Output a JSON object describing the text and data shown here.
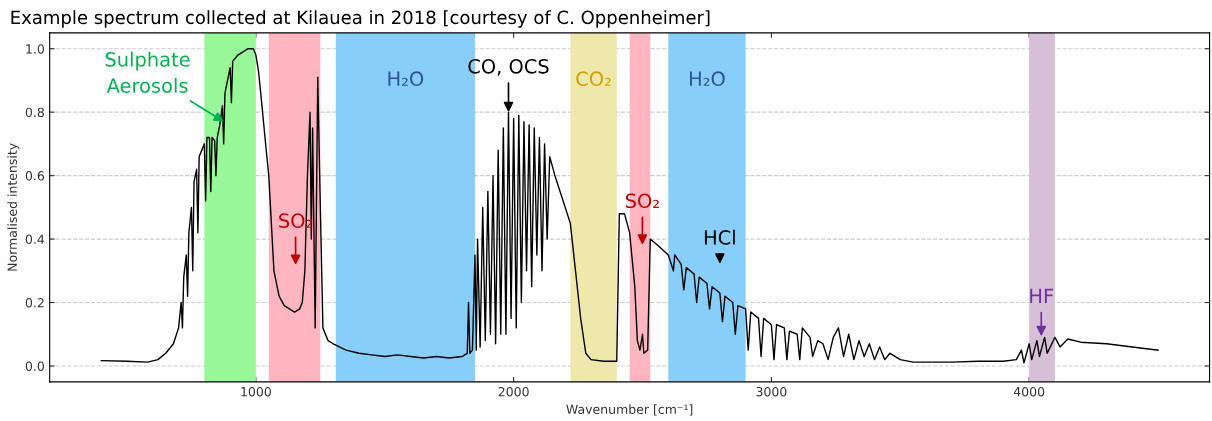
{
  "chart_data": {
    "type": "line",
    "title": "Example spectrum collected at Kilauea in 2018 [courtesy of C. Oppenheimer]",
    "xlabel": "Wavenumber [cm⁻¹]",
    "ylabel": "Normalised intensity",
    "xlim": [
      200,
      4700
    ],
    "ylim": [
      -0.05,
      1.05
    ],
    "xticks": [
      1000,
      2000,
      3000,
      4000
    ],
    "yticks": [
      {
        "value": 0,
        "label": "0.0"
      },
      {
        "value": 0.2,
        "label": "0.2"
      },
      {
        "value": 0.4,
        "label": "0.4"
      },
      {
        "value": 0.6,
        "label": "0.6"
      },
      {
        "value": 0.8,
        "label": "0.8"
      },
      {
        "value": 1,
        "label": "1.0"
      }
    ],
    "grid": "y",
    "legend": false,
    "marker": "none",
    "line_style": "solid",
    "series": [
      {
        "color": "#000000",
        "x": [
          400,
          500,
          580,
          620,
          650,
          680,
          700,
          710,
          715,
          720,
          730,
          735,
          740,
          750,
          755,
          760,
          770,
          775,
          780,
          790,
          800,
          805,
          810,
          820,
          825,
          830,
          840,
          845,
          850,
          860,
          870,
          875,
          880,
          890,
          900,
          905,
          910,
          930,
          950,
          970,
          990,
          1000,
          1010,
          1020,
          1040,
          1050,
          1060,
          1070,
          1090,
          1110,
          1130,
          1150,
          1170,
          1180,
          1190,
          1200,
          1210,
          1215,
          1220,
          1230,
          1240,
          1250,
          1260,
          1280,
          1300,
          1350,
          1400,
          1450,
          1500,
          1550,
          1600,
          1650,
          1700,
          1750,
          1800,
          1820,
          1825,
          1830,
          1840,
          1850,
          1855,
          1860,
          1870,
          1880,
          1890,
          1900,
          1910,
          1920,
          1930,
          1940,
          1950,
          1960,
          1970,
          1980,
          1990,
          2000,
          2010,
          2020,
          2030,
          2040,
          2050,
          2060,
          2070,
          2080,
          2090,
          2100,
          2110,
          2120,
          2130,
          2140,
          2160,
          2180,
          2200,
          2220,
          2240,
          2260,
          2280,
          2300,
          2350,
          2400,
          2410,
          2430,
          2450,
          2470,
          2480,
          2490,
          2500,
          2505,
          2520,
          2530,
          2560,
          2600,
          2620,
          2625,
          2650,
          2660,
          2670,
          2700,
          2710,
          2720,
          2750,
          2760,
          2770,
          2800,
          2810,
          2820,
          2850,
          2860,
          2870,
          2900,
          2910,
          2920,
          2950,
          2960,
          2970,
          3000,
          3010,
          3020,
          3050,
          3060,
          3070,
          3100,
          3110,
          3120,
          3150,
          3160,
          3180,
          3200,
          3220,
          3240,
          3260,
          3280,
          3300,
          3320,
          3340,
          3360,
          3380,
          3400,
          3420,
          3440,
          3460,
          3500,
          3550,
          3700,
          3800,
          3900,
          3950,
          3970,
          3980,
          4000,
          4010,
          4030,
          4040,
          4060,
          4070,
          4100,
          4120,
          4150,
          4200,
          4300,
          4400,
          4500
        ],
        "values": [
          0.017,
          0.015,
          0.012,
          0.02,
          0.04,
          0.07,
          0.12,
          0.2,
          0.12,
          0.28,
          0.35,
          0.22,
          0.42,
          0.5,
          0.3,
          0.58,
          0.62,
          0.42,
          0.66,
          0.68,
          0.7,
          0.52,
          0.72,
          0.72,
          0.55,
          0.72,
          0.71,
          0.6,
          0.72,
          0.76,
          0.82,
          0.7,
          0.86,
          0.9,
          0.94,
          0.83,
          0.96,
          0.98,
          0.99,
          1.0,
          1.0,
          0.98,
          0.93,
          0.85,
          0.68,
          0.6,
          0.45,
          0.3,
          0.22,
          0.19,
          0.18,
          0.17,
          0.18,
          0.2,
          0.3,
          0.6,
          0.8,
          0.4,
          0.75,
          0.12,
          0.91,
          0.5,
          0.12,
          0.08,
          0.07,
          0.05,
          0.04,
          0.035,
          0.03,
          0.035,
          0.03,
          0.025,
          0.03,
          0.025,
          0.03,
          0.04,
          0.2,
          0.04,
          0.05,
          0.35,
          0.05,
          0.4,
          0.06,
          0.5,
          0.08,
          0.55,
          0.1,
          0.6,
          0.07,
          0.68,
          0.1,
          0.75,
          0.1,
          0.8,
          0.15,
          0.78,
          0.12,
          0.79,
          0.2,
          0.77,
          0.3,
          0.76,
          0.25,
          0.75,
          0.35,
          0.72,
          0.3,
          0.7,
          0.4,
          0.66,
          0.6,
          0.55,
          0.5,
          0.45,
          0.3,
          0.15,
          0.04,
          0.02,
          0.015,
          0.015,
          0.48,
          0.48,
          0.42,
          0.25,
          0.08,
          0.05,
          0.1,
          0.04,
          0.05,
          0.4,
          0.38,
          0.35,
          0.3,
          0.35,
          0.32,
          0.24,
          0.31,
          0.29,
          0.2,
          0.28,
          0.26,
          0.18,
          0.25,
          0.23,
          0.14,
          0.22,
          0.2,
          0.1,
          0.19,
          0.18,
          0.05,
          0.17,
          0.15,
          0.03,
          0.15,
          0.13,
          0.02,
          0.13,
          0.12,
          0.02,
          0.11,
          0.1,
          0.02,
          0.12,
          0.09,
          0.03,
          0.08,
          0.07,
          0.02,
          0.09,
          0.12,
          0.03,
          0.1,
          0.02,
          0.08,
          0.03,
          0.07,
          0.02,
          0.06,
          0.02,
          0.04,
          0.02,
          0.012,
          0.012,
          0.015,
          0.015,
          0.02,
          0.05,
          0.01,
          0.07,
          0.02,
          0.08,
          0.03,
          0.09,
          0.04,
          0.09,
          0.06,
          0.085,
          0.075,
          0.07,
          0.06,
          0.05
        ]
      }
    ],
    "bands": [
      {
        "axis": "x",
        "from": 800,
        "to": 1000,
        "color": "#98f898"
      },
      {
        "axis": "x",
        "from": 1050,
        "to": 1250,
        "color": "#ffb6c1"
      },
      {
        "axis": "x",
        "from": 1310,
        "to": 1850,
        "color": "#87cefa",
        "label": "H₂O"
      },
      {
        "axis": "x",
        "from": 2220,
        "to": 2400,
        "color": "#eee8aa",
        "label": "CO₂"
      },
      {
        "axis": "x",
        "from": 2450,
        "to": 2530,
        "color": "#ffb6c1"
      },
      {
        "axis": "x",
        "from": 2600,
        "to": 2900,
        "color": "#87cefa",
        "label": "H₂O"
      },
      {
        "axis": "x",
        "from": 4000,
        "to": 4100,
        "color": "#d8bfd8"
      }
    ],
    "annotations": [
      {
        "text": "Sulphate\nAerosols",
        "x": 876,
        "y": 0.77
      },
      "SO₂",
      {
        "text": "CO, OCS",
        "x": 1980,
        "y": 0.8
      },
      "SO₂",
      {
        "text": "HCl",
        "x": 2800,
        "y": 0.23
      },
      {
        "text": "HF",
        "x": 4047,
        "y": 0.094
      }
    ]
  }
}
